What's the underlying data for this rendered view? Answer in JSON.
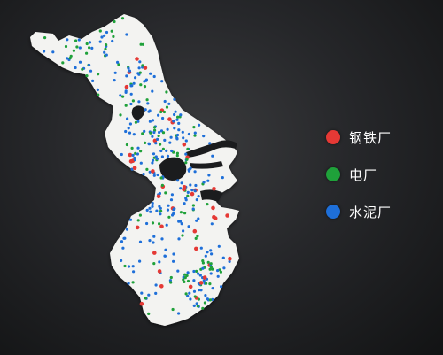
{
  "colors": {
    "background": "#1e1f21",
    "land": "#f3f3f1",
    "water": "#1b1c1e",
    "steel": "#e53935",
    "power": "#1fa13a",
    "cement": "#1e6fd9"
  },
  "legend": [
    {
      "key": "steel",
      "label": "钢铁厂",
      "color": "#e53935"
    },
    {
      "key": "power",
      "label": "电厂",
      "color": "#1fa13a"
    },
    {
      "key": "cement",
      "label": "水泥厂",
      "color": "#1e6fd9"
    }
  ]
}
